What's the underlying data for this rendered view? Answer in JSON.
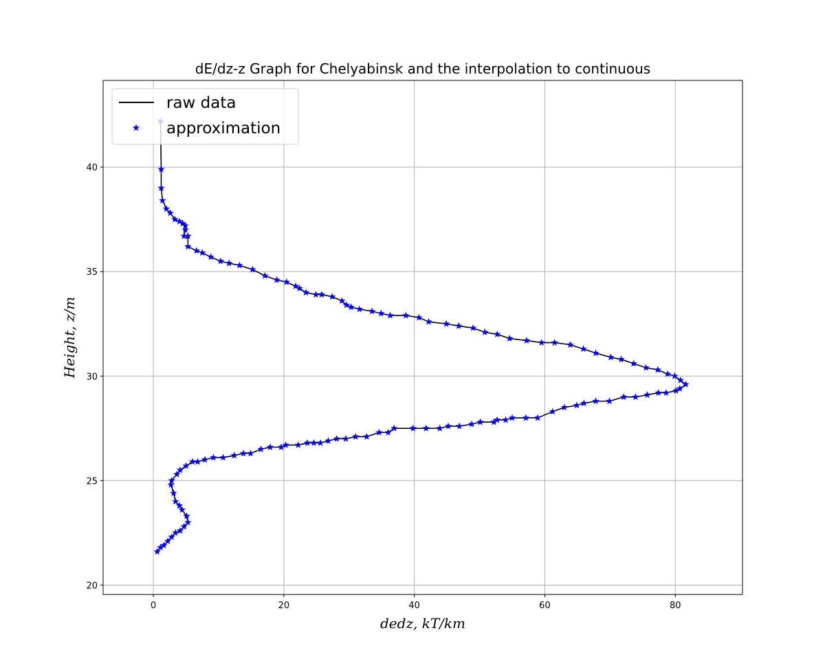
{
  "chart_data": {
    "type": "line",
    "title": "dE/dz-z Graph for Chelyabinsk and the interpolation to continuous",
    "xlabel": "dedz, kT/km",
    "ylabel": "Height, z/m",
    "xlim": [
      -7.7,
      90.3
    ],
    "ylim": [
      19.55,
      44.15
    ],
    "xticks": [
      0,
      20,
      40,
      60,
      80
    ],
    "yticks": [
      20,
      25,
      30,
      35,
      40
    ],
    "grid": true,
    "legend_position": "top-left",
    "series": [
      {
        "name": "raw data",
        "style": "line",
        "color": "#000000",
        "points": [
          [
            1.1,
            42.2
          ],
          [
            1.2,
            39.9
          ],
          [
            1.2,
            39.0
          ],
          [
            1.4,
            38.4
          ],
          [
            2.0,
            38.0
          ],
          [
            2.6,
            37.8
          ],
          [
            3.3,
            37.5
          ],
          [
            4.0,
            37.4
          ],
          [
            4.5,
            37.3
          ],
          [
            4.9,
            37.2
          ],
          [
            4.9,
            37.0
          ],
          [
            4.7,
            36.7
          ],
          [
            5.3,
            36.7
          ],
          [
            5.3,
            36.2
          ],
          [
            6.6,
            36.0
          ],
          [
            7.5,
            35.9
          ],
          [
            8.8,
            35.7
          ],
          [
            10.3,
            35.5
          ],
          [
            11.6,
            35.4
          ],
          [
            13.2,
            35.3
          ],
          [
            15.2,
            35.1
          ],
          [
            17.1,
            34.8
          ],
          [
            18.9,
            34.6
          ],
          [
            20.4,
            34.5
          ],
          [
            21.8,
            34.3
          ],
          [
            22.4,
            34.2
          ],
          [
            23.4,
            34.0
          ],
          [
            24.9,
            33.9
          ],
          [
            25.8,
            33.9
          ],
          [
            27.4,
            33.8
          ],
          [
            28.9,
            33.6
          ],
          [
            29.6,
            33.4
          ],
          [
            30.3,
            33.3
          ],
          [
            31.6,
            33.2
          ],
          [
            33.5,
            33.1
          ],
          [
            34.9,
            33.0
          ],
          [
            36.3,
            32.9
          ],
          [
            38.7,
            32.9
          ],
          [
            40.7,
            32.8
          ],
          [
            42.2,
            32.6
          ],
          [
            44.9,
            32.5
          ],
          [
            46.8,
            32.4
          ],
          [
            49.0,
            32.3
          ],
          [
            50.8,
            32.1
          ],
          [
            52.7,
            32.0
          ],
          [
            54.6,
            31.8
          ],
          [
            57.2,
            31.7
          ],
          [
            59.5,
            31.6
          ],
          [
            61.5,
            31.6
          ],
          [
            63.9,
            31.5
          ],
          [
            65.9,
            31.3
          ],
          [
            67.8,
            31.1
          ],
          [
            70.1,
            30.9
          ],
          [
            71.7,
            30.8
          ],
          [
            73.6,
            30.6
          ],
          [
            75.5,
            30.4
          ],
          [
            77.3,
            30.3
          ],
          [
            78.8,
            30.1
          ],
          [
            79.9,
            30.0
          ],
          [
            80.8,
            29.8
          ],
          [
            81.6,
            29.6
          ],
          [
            80.7,
            29.4
          ],
          [
            80.1,
            29.3
          ],
          [
            78.6,
            29.2
          ],
          [
            77.4,
            29.2
          ],
          [
            75.7,
            29.1
          ],
          [
            73.9,
            29.0
          ],
          [
            72.1,
            29.0
          ],
          [
            69.9,
            28.8
          ],
          [
            67.8,
            28.8
          ],
          [
            66.0,
            28.7
          ],
          [
            64.9,
            28.6
          ],
          [
            63.0,
            28.5
          ],
          [
            61.2,
            28.3
          ],
          [
            58.9,
            28.0
          ],
          [
            57.1,
            28.0
          ],
          [
            55.0,
            28.0
          ],
          [
            54.0,
            27.9
          ],
          [
            52.7,
            27.9
          ],
          [
            52.2,
            27.8
          ],
          [
            50.1,
            27.8
          ],
          [
            48.8,
            27.7
          ],
          [
            46.9,
            27.6
          ],
          [
            45.2,
            27.6
          ],
          [
            43.9,
            27.5
          ],
          [
            41.8,
            27.5
          ],
          [
            39.8,
            27.5
          ],
          [
            36.9,
            27.5
          ],
          [
            36.0,
            27.3
          ],
          [
            34.6,
            27.3
          ],
          [
            32.7,
            27.1
          ],
          [
            31.0,
            27.1
          ],
          [
            29.5,
            27.0
          ],
          [
            28.1,
            27.0
          ],
          [
            26.8,
            26.9
          ],
          [
            25.6,
            26.8
          ],
          [
            24.6,
            26.8
          ],
          [
            23.6,
            26.8
          ],
          [
            22.2,
            26.7
          ],
          [
            20.3,
            26.7
          ],
          [
            19.6,
            26.6
          ],
          [
            17.9,
            26.6
          ],
          [
            16.5,
            26.5
          ],
          [
            14.9,
            26.3
          ],
          [
            13.8,
            26.3
          ],
          [
            12.4,
            26.2
          ],
          [
            10.7,
            26.1
          ],
          [
            9.2,
            26.1
          ],
          [
            7.9,
            26.0
          ],
          [
            6.8,
            25.9
          ],
          [
            6.0,
            25.9
          ],
          [
            5.0,
            25.7
          ],
          [
            4.1,
            25.5
          ],
          [
            3.6,
            25.3
          ],
          [
            2.8,
            25.0
          ],
          [
            2.7,
            24.8
          ],
          [
            3.1,
            24.4
          ],
          [
            3.4,
            24.0
          ],
          [
            4.0,
            23.8
          ],
          [
            4.4,
            23.6
          ],
          [
            5.1,
            23.3
          ],
          [
            5.3,
            23.0
          ],
          [
            4.7,
            22.8
          ],
          [
            4.1,
            22.6
          ],
          [
            3.4,
            22.5
          ],
          [
            2.8,
            22.3
          ],
          [
            2.2,
            22.1
          ],
          [
            1.6,
            21.9
          ],
          [
            1.1,
            21.8
          ],
          [
            0.6,
            21.6
          ]
        ]
      },
      {
        "name": "approximation",
        "style": "markers",
        "marker": "star",
        "color": "#0000ff",
        "points": "same as raw data"
      }
    ]
  },
  "colors": {
    "raw_line": "#000000",
    "approx_marker": "#0000ff",
    "grid": "#b0b0b0",
    "axes": "#000000"
  }
}
